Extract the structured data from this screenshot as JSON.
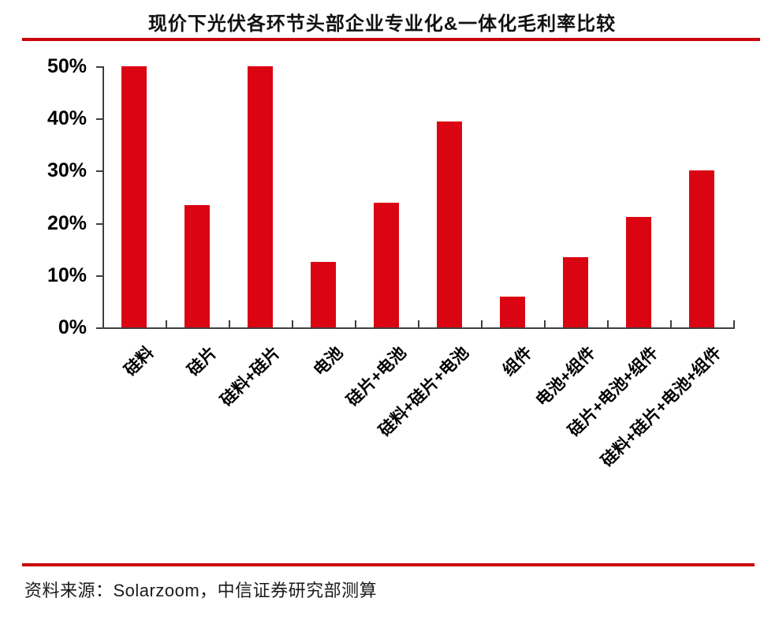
{
  "title": "现价下光伏各环节头部企业专业化&一体化毛利率比较",
  "source_note": "资料来源：Solarzoom，中信证券研究部测算",
  "colors": {
    "bar": "#DA0413",
    "rule": "#C9050C",
    "axis": "#3f3f3f",
    "text": "#000000"
  },
  "chart_data": {
    "type": "bar",
    "title": "现价下光伏各环节头部企业专业化&一体化毛利率比较",
    "categories": [
      "硅料",
      "硅片",
      "硅料+硅片",
      "电池",
      "硅片+电池",
      "硅料+硅片+电池",
      "组件",
      "电池+组件",
      "硅片+电池+组件",
      "硅料+硅片+电池+组件"
    ],
    "values": [
      50.0,
      23.4,
      50.0,
      12.5,
      23.8,
      39.4,
      5.9,
      13.4,
      21.1,
      30.0
    ],
    "unit": "%",
    "xlabel": "",
    "ylabel": "",
    "ylim": [
      0,
      50
    ],
    "ytick_interval": 10,
    "yticks": [
      "0%",
      "10%",
      "20%",
      "30%",
      "40%",
      "50%"
    ],
    "grid": false,
    "legend": null,
    "bar_color": "#DA0413",
    "source": "资料来源：Solarzoom，中信证券研究部测算"
  }
}
